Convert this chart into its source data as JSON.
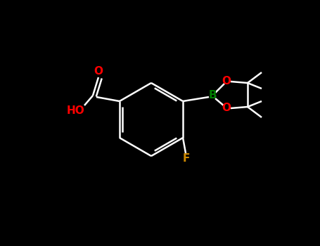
{
  "background_color": "#000000",
  "bond_color": "#ffffff",
  "bond_width": 1.8,
  "atom_colors": {
    "O": "#ff0000",
    "B": "#008000",
    "F": "#cc8800",
    "C": "#ffffff",
    "H": "#ffffff"
  },
  "figsize": [
    4.55,
    3.5
  ],
  "dpi": 100,
  "font_size": 11
}
